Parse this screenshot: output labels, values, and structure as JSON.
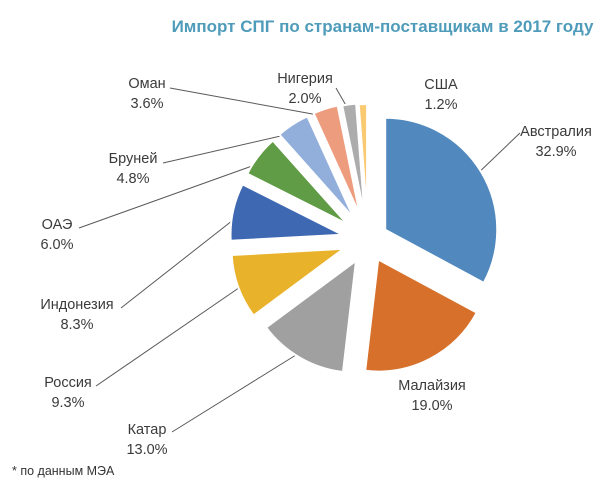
{
  "title": "Импорт СПГ по странам-поставщикам в 2017 году",
  "footnote": "* по данным МЭА",
  "title_color": "#4f9bba",
  "leader_line_color": "#595959",
  "chart_data": {
    "type": "pie",
    "title": "Импорт СПГ по странам-поставщикам в 2017 году",
    "unit": "percent",
    "direction": "clockwise",
    "start_angle_deg": 0,
    "exploded": true,
    "footnote": "* по данным МЭА",
    "slices": [
      {
        "label": "Австралия",
        "value": 32.9,
        "display": "32.9%",
        "color": "#5189BE"
      },
      {
        "label": "Малайзия",
        "value": 19.0,
        "display": "19.0%",
        "color": "#D6702B"
      },
      {
        "label": "Катар",
        "value": 13.0,
        "display": "13.0%",
        "color": "#A0A0A0"
      },
      {
        "label": "Россия",
        "value": 9.3,
        "display": "9.3%",
        "color": "#E8B22A"
      },
      {
        "label": "Индонезия",
        "value": 8.3,
        "display": "8.3%",
        "color": "#3E68B2"
      },
      {
        "label": "ОАЭ",
        "value": 6.0,
        "display": "6.0%",
        "color": "#5F9C45"
      },
      {
        "label": "Бруней",
        "value": 4.8,
        "display": "4.8%",
        "color": "#92AFDC"
      },
      {
        "label": "Оман",
        "value": 3.6,
        "display": "3.6%",
        "color": "#EE9C7E"
      },
      {
        "label": "Нигерия",
        "value": 2.0,
        "display": "2.0%",
        "color": "#ACACAC"
      },
      {
        "label": "США",
        "value": 1.2,
        "display": "1.2%",
        "color": "#FACA72"
      }
    ]
  }
}
